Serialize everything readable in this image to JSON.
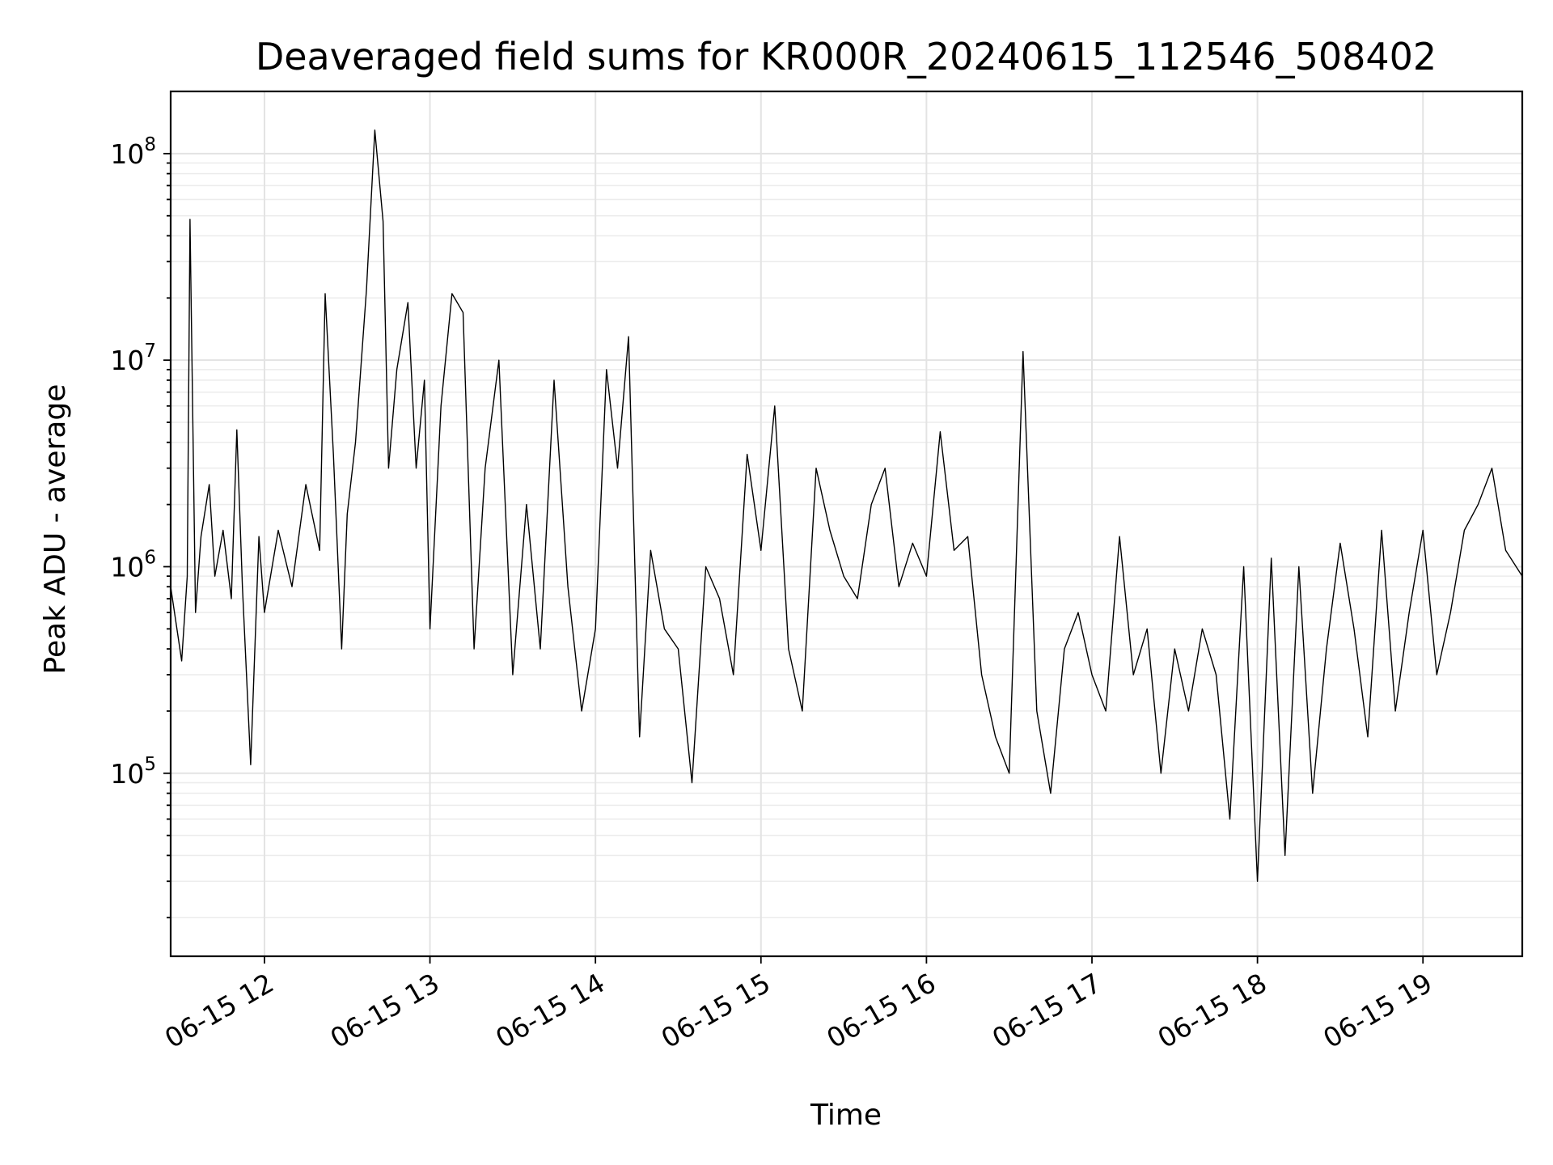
{
  "chart_data": {
    "type": "line",
    "title": "Deaveraged field sums for KR000R_20240615_112546_508402",
    "xlabel": "Time",
    "ylabel": "Peak ADU - average",
    "yscale": "log",
    "xlim": [
      "2024-06-15T11:26",
      "2024-06-15T19:36"
    ],
    "ylim": [
      13000,
      200000000
    ],
    "grid": true,
    "line_color": "#000000",
    "x_ticks": [
      {
        "value": "2024-06-15T12:00",
        "label": "06-15 12"
      },
      {
        "value": "2024-06-15T13:00",
        "label": "06-15 13"
      },
      {
        "value": "2024-06-15T14:00",
        "label": "06-15 14"
      },
      {
        "value": "2024-06-15T15:00",
        "label": "06-15 15"
      },
      {
        "value": "2024-06-15T16:00",
        "label": "06-15 16"
      },
      {
        "value": "2024-06-15T17:00",
        "label": "06-15 17"
      },
      {
        "value": "2024-06-15T18:00",
        "label": "06-15 18"
      },
      {
        "value": "2024-06-15T19:00",
        "label": "06-15 19"
      }
    ],
    "y_ticks": [
      {
        "value": 100000,
        "base": "10",
        "exp": "5"
      },
      {
        "value": 1000000,
        "base": "10",
        "exp": "6"
      },
      {
        "value": 10000000,
        "base": "10",
        "exp": "7"
      },
      {
        "value": 100000000,
        "base": "10",
        "exp": "8"
      }
    ],
    "series": [
      {
        "x": [
          "2024-06-15T11:26",
          "2024-06-15T11:30",
          "2024-06-15T11:32",
          "2024-06-15T11:33",
          "2024-06-15T11:35",
          "2024-06-15T11:37",
          "2024-06-15T11:40",
          "2024-06-15T11:42",
          "2024-06-15T11:45",
          "2024-06-15T11:48",
          "2024-06-15T11:50",
          "2024-06-15T11:52",
          "2024-06-15T11:55",
          "2024-06-15T11:58",
          "2024-06-15T12:00",
          "2024-06-15T12:05",
          "2024-06-15T12:10",
          "2024-06-15T12:15",
          "2024-06-15T12:20",
          "2024-06-15T12:22",
          "2024-06-15T12:25",
          "2024-06-15T12:28",
          "2024-06-15T12:30",
          "2024-06-15T12:33",
          "2024-06-15T12:37",
          "2024-06-15T12:40",
          "2024-06-15T12:43",
          "2024-06-15T12:45",
          "2024-06-15T12:48",
          "2024-06-15T12:52",
          "2024-06-15T12:55",
          "2024-06-15T12:58",
          "2024-06-15T13:00",
          "2024-06-15T13:04",
          "2024-06-15T13:08",
          "2024-06-15T13:12",
          "2024-06-15T13:16",
          "2024-06-15T13:20",
          "2024-06-15T13:25",
          "2024-06-15T13:30",
          "2024-06-15T13:35",
          "2024-06-15T13:40",
          "2024-06-15T13:45",
          "2024-06-15T13:50",
          "2024-06-15T13:55",
          "2024-06-15T14:00",
          "2024-06-15T14:04",
          "2024-06-15T14:08",
          "2024-06-15T14:12",
          "2024-06-15T14:16",
          "2024-06-15T14:20",
          "2024-06-15T14:25",
          "2024-06-15T14:30",
          "2024-06-15T14:35",
          "2024-06-15T14:40",
          "2024-06-15T14:45",
          "2024-06-15T14:50",
          "2024-06-15T14:55",
          "2024-06-15T15:00",
          "2024-06-15T15:05",
          "2024-06-15T15:10",
          "2024-06-15T15:15",
          "2024-06-15T15:20",
          "2024-06-15T15:25",
          "2024-06-15T15:30",
          "2024-06-15T15:35",
          "2024-06-15T15:40",
          "2024-06-15T15:45",
          "2024-06-15T15:50",
          "2024-06-15T15:55",
          "2024-06-15T16:00",
          "2024-06-15T16:05",
          "2024-06-15T16:10",
          "2024-06-15T16:15",
          "2024-06-15T16:20",
          "2024-06-15T16:25",
          "2024-06-15T16:30",
          "2024-06-15T16:35",
          "2024-06-15T16:40",
          "2024-06-15T16:45",
          "2024-06-15T16:50",
          "2024-06-15T16:55",
          "2024-06-15T17:00",
          "2024-06-15T17:05",
          "2024-06-15T17:10",
          "2024-06-15T17:15",
          "2024-06-15T17:20",
          "2024-06-15T17:25",
          "2024-06-15T17:30",
          "2024-06-15T17:35",
          "2024-06-15T17:40",
          "2024-06-15T17:45",
          "2024-06-15T17:50",
          "2024-06-15T17:55",
          "2024-06-15T18:00",
          "2024-06-15T18:05",
          "2024-06-15T18:10",
          "2024-06-15T18:15",
          "2024-06-15T18:20",
          "2024-06-15T18:25",
          "2024-06-15T18:30",
          "2024-06-15T18:35",
          "2024-06-15T18:40",
          "2024-06-15T18:45",
          "2024-06-15T18:50",
          "2024-06-15T18:55",
          "2024-06-15T19:00",
          "2024-06-15T19:05",
          "2024-06-15T19:10",
          "2024-06-15T19:15",
          "2024-06-15T19:20",
          "2024-06-15T19:25",
          "2024-06-15T19:30",
          "2024-06-15T19:36"
        ],
        "y": [
          800000,
          350000,
          900000,
          48000000,
          600000,
          1400000,
          2500000,
          900000,
          1500000,
          700000,
          4600000,
          800000,
          110000,
          1400000,
          600000,
          1500000,
          800000,
          2500000,
          1200000,
          21000000,
          3500000,
          400000,
          1800000,
          4000000,
          22000000,
          130000000,
          47000000,
          3000000,
          9000000,
          19000000,
          3000000,
          8000000,
          500000,
          6000000,
          21000000,
          17000000,
          400000,
          3000000,
          10000000,
          300000,
          2000000,
          400000,
          8000000,
          800000,
          200000,
          500000,
          9000000,
          3000000,
          13000000,
          150000,
          1200000,
          500000,
          400000,
          90000,
          1000000,
          700000,
          300000,
          3500000,
          1200000,
          6000000,
          400000,
          200000,
          3000000,
          1500000,
          900000,
          700000,
          2000000,
          3000000,
          800000,
          1300000,
          900000,
          4500000,
          1200000,
          1400000,
          300000,
          150000,
          100000,
          11000000,
          200000,
          80000,
          400000,
          600000,
          300000,
          200000,
          1400000,
          300000,
          500000,
          100000,
          400000,
          200000,
          500000,
          300000,
          60000,
          1000000,
          30000,
          1100000,
          40000,
          1000000,
          80000,
          400000,
          1300000,
          500000,
          150000,
          1500000,
          200000,
          600000,
          1500000,
          300000,
          600000,
          1500000,
          2000000,
          3000000,
          1200000,
          900000
        ]
      }
    ]
  }
}
